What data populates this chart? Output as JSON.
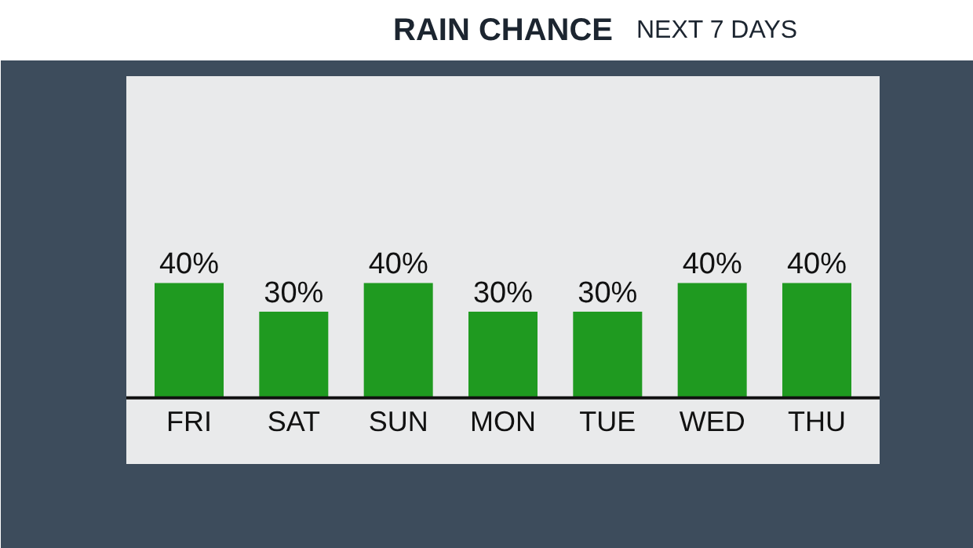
{
  "chart_data": {
    "type": "bar",
    "title": "RAIN CHANCE",
    "subtitle": "NEXT 7 DAYS",
    "categories": [
      "FRI",
      "SAT",
      "SUN",
      "MON",
      "TUE",
      "WED",
      "THU"
    ],
    "values": [
      40,
      30,
      40,
      30,
      30,
      40,
      40
    ],
    "value_labels": [
      "40%",
      "30%",
      "40%",
      "30%",
      "30%",
      "40%",
      "40%"
    ],
    "color": "#1f9a20"
  }
}
